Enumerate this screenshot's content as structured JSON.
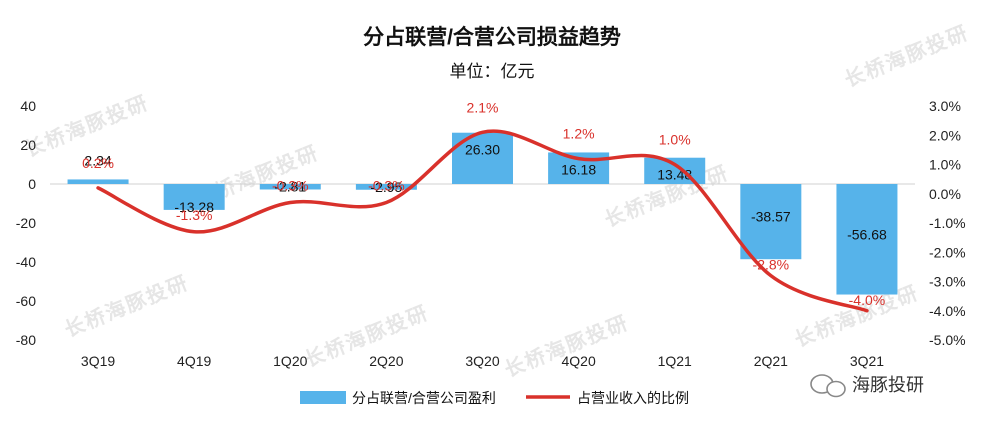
{
  "chart_data": {
    "type": "bar+line",
    "title": "分占联营/合营公司损益趋势",
    "subtitle": "单位：亿元",
    "categories": [
      "3Q19",
      "4Q19",
      "1Q20",
      "2Q20",
      "3Q20",
      "4Q20",
      "1Q21",
      "2Q21",
      "3Q21"
    ],
    "series": [
      {
        "name": "分占联营/合营公司盈利",
        "type": "bar",
        "axis": "left",
        "values": [
          2.34,
          -13.28,
          -2.81,
          -2.95,
          26.3,
          16.18,
          13.48,
          -38.57,
          -56.68
        ],
        "labels": [
          "2.34",
          "-13.28",
          "-2.81",
          "-2.95",
          "26.30",
          "16.18",
          "13.48",
          "-38.57",
          "-56.68"
        ],
        "color": "#56b3ea"
      },
      {
        "name": "占营业收入的比例",
        "type": "line",
        "axis": "right",
        "values": [
          0.2,
          -1.3,
          -0.3,
          -0.3,
          2.1,
          1.2,
          1.0,
          -2.8,
          -4.0
        ],
        "labels": [
          "0.2%",
          "-1.3%",
          "-0.3%",
          "-0.3%",
          "2.1%",
          "1.2%",
          "1.0%",
          "-2.8%",
          "-4.0%"
        ],
        "color": "#d9312b"
      }
    ],
    "y_left": {
      "min": -80,
      "max": 40,
      "step": 20,
      "ticks": [
        "40",
        "20",
        "0",
        "-20",
        "-40",
        "-60",
        "-80"
      ]
    },
    "y_right": {
      "min": -5,
      "max": 3,
      "step": 1,
      "ticks": [
        "3.0%",
        "2.0%",
        "1.0%",
        "0.0%",
        "-1.0%",
        "-2.0%",
        "-3.0%",
        "-4.0%",
        "-5.0%"
      ]
    },
    "grid": false,
    "legend_position": "bottom"
  },
  "watermark": {
    "brand": "海豚投研",
    "repeat_text": "长桥海豚投研"
  }
}
